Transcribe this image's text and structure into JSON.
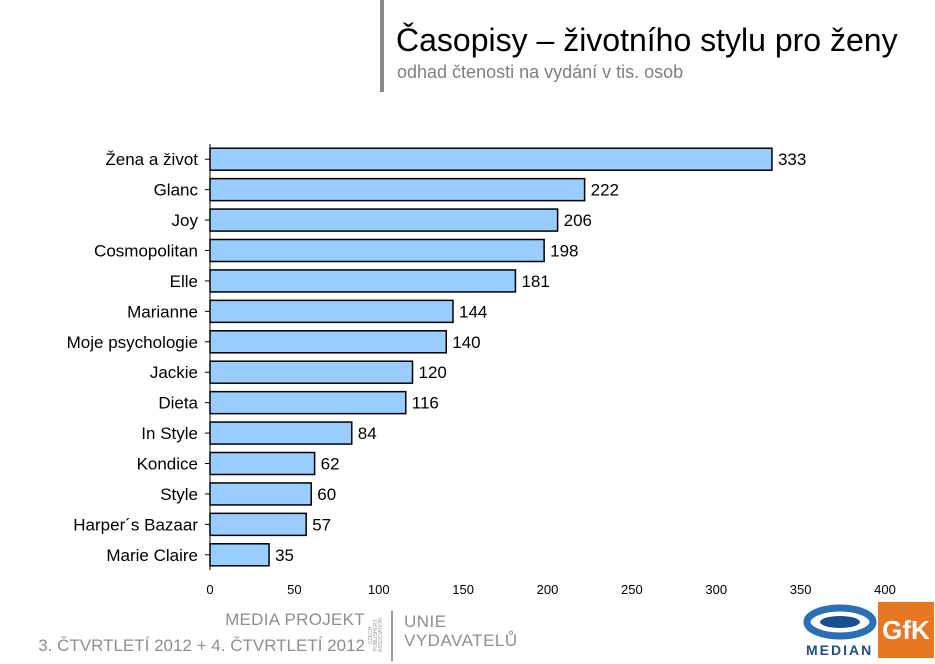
{
  "chart_data": {
    "type": "bar",
    "orientation": "horizontal",
    "title": "Časopisy – životního stylu pro ženy",
    "subtitle": "odhad čtenosti na vydání v tis. osob",
    "categories": [
      "Žena a život",
      "Glanc",
      "Joy",
      "Cosmopolitan",
      "Elle",
      "Marianne",
      "Moje psychologie",
      "Jackie",
      "Dieta",
      "In Style",
      "Kondice",
      "Style",
      "Harper´s Bazaar",
      "Marie Claire"
    ],
    "values": [
      333,
      222,
      206,
      198,
      181,
      144,
      140,
      120,
      116,
      84,
      62,
      60,
      57,
      35
    ],
    "xlim": [
      0,
      400
    ],
    "xticks": [
      0,
      50,
      100,
      150,
      200,
      250,
      300,
      350,
      400
    ],
    "grid": false,
    "legend": "none",
    "bar_color": "#99ccff",
    "bar_stroke": "#000000"
  },
  "footer": {
    "project": "MEDIA PROJEKT",
    "period": "3. ČTVRTLETÍ 2012 + 4. ČTVRTLETÍ 2012",
    "cpa": "CZECH PUBLISHERS ASSOCIATION",
    "unie_line1": "UNIE",
    "unie_line2": "VYDAVATELŮ",
    "median": "MEDIAN",
    "gfk": "GfK"
  }
}
